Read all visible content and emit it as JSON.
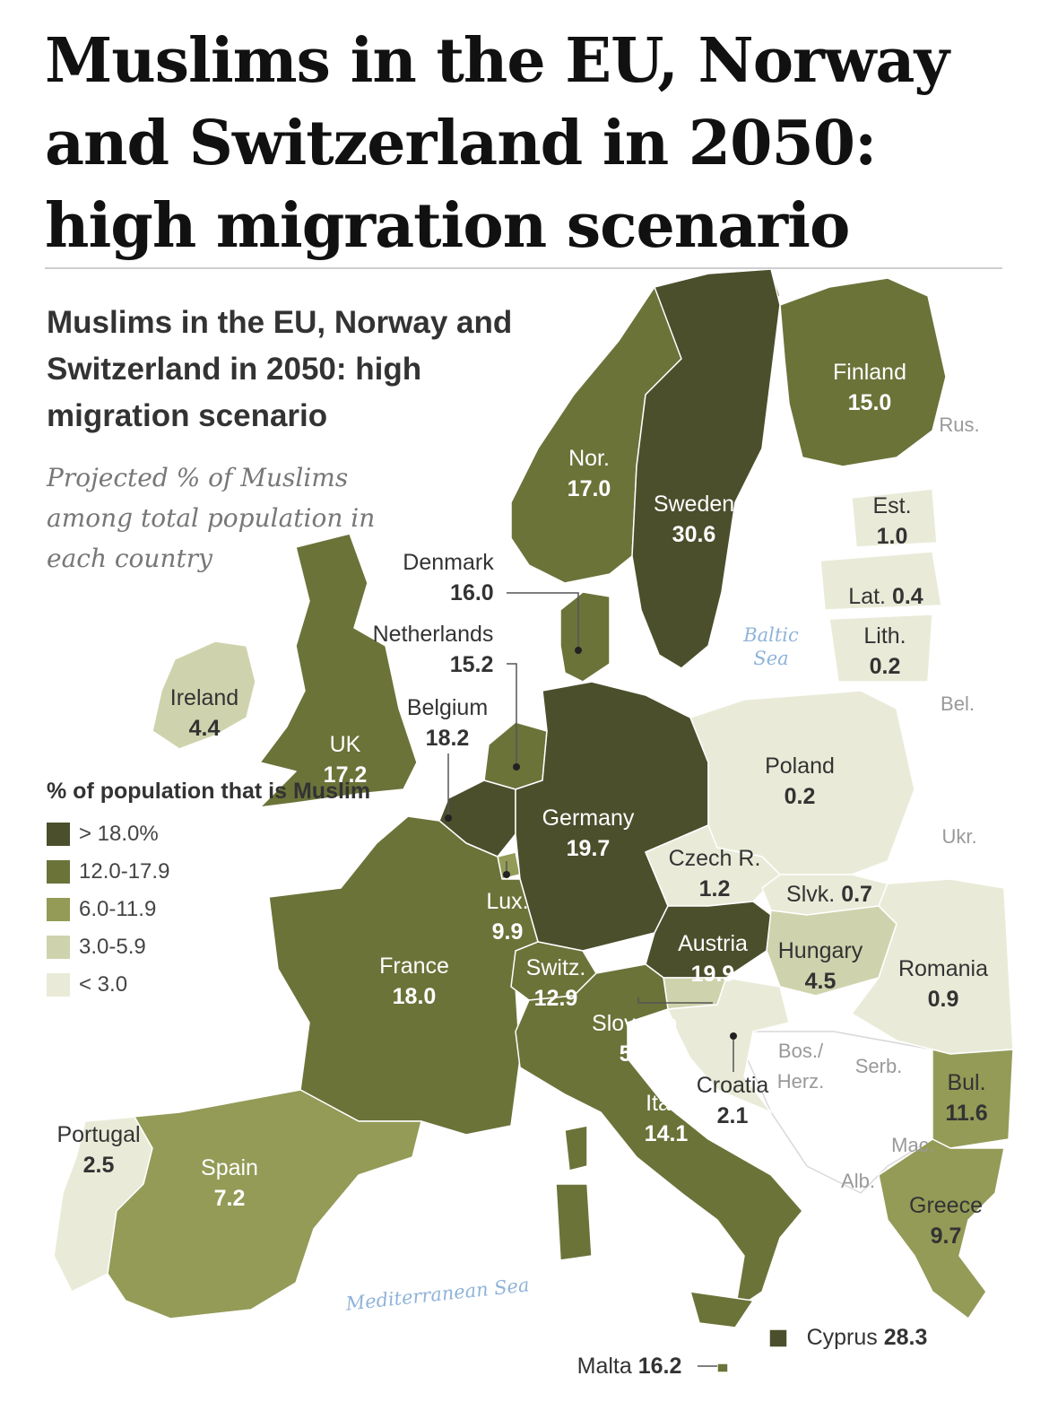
{
  "headline": "Muslims in the EU, Norway and Switzerland in 2050: high migration scenario",
  "map": {
    "title": "Muslims in the EU, Norway and Switzerland in 2050: high migration scenario",
    "subtitle": "Projected % of Muslims among total population in each country",
    "legend": {
      "title": "% of population that is Muslim",
      "items": [
        {
          "label": "> 18.0%",
          "color": "#4b4f2c"
        },
        {
          "label": "12.0-17.9",
          "color": "#6b7339"
        },
        {
          "label": "6.0-11.9",
          "color": "#939b57"
        },
        {
          "label": "3.0-5.9",
          "color": "#cfd3ad"
        },
        {
          "label": "< 3.0",
          "color": "#e9ebd8"
        }
      ]
    },
    "countries": {
      "finland": {
        "name": "Finland",
        "value": "15.0",
        "pct": 15.0
      },
      "norway": {
        "name": "Nor.",
        "value": "17.0",
        "pct": 17.0
      },
      "sweden": {
        "name": "Sweden",
        "value": "30.6",
        "pct": 30.6
      },
      "estonia": {
        "name": "Est.",
        "value": "1.0",
        "pct": 1.0
      },
      "latvia": {
        "name": "Lat.",
        "value": "0.4",
        "pct": 0.4
      },
      "lithuania": {
        "name": "Lith.",
        "value": "0.2",
        "pct": 0.2
      },
      "denmark": {
        "name": "Denmark",
        "value": "16.0",
        "pct": 16.0
      },
      "netherlands": {
        "name": "Netherlands",
        "value": "15.2",
        "pct": 15.2
      },
      "belgium": {
        "name": "Belgium",
        "value": "18.2",
        "pct": 18.2
      },
      "ireland": {
        "name": "Ireland",
        "value": "4.4",
        "pct": 4.4
      },
      "uk": {
        "name": "UK",
        "value": "17.2",
        "pct": 17.2
      },
      "germany": {
        "name": "Germany",
        "value": "19.7",
        "pct": 19.7
      },
      "poland": {
        "name": "Poland",
        "value": "0.2",
        "pct": 0.2
      },
      "czech": {
        "name": "Czech R.",
        "value": "1.2",
        "pct": 1.2
      },
      "slovakia": {
        "name": "Slvk.",
        "value": "0.7",
        "pct": 0.7
      },
      "luxembourg": {
        "name": "Lux.",
        "value": "9.9",
        "pct": 9.9
      },
      "austria": {
        "name": "Austria",
        "value": "19.9",
        "pct": 19.9
      },
      "hungary": {
        "name": "Hungary",
        "value": "4.5",
        "pct": 4.5
      },
      "romania": {
        "name": "Romania",
        "value": "0.9",
        "pct": 0.9
      },
      "france": {
        "name": "France",
        "value": "18.0",
        "pct": 18.0
      },
      "switzerland": {
        "name": "Switz.",
        "value": "12.9",
        "pct": 12.9
      },
      "slovenia": {
        "name": "Slovenia",
        "value": "5.2",
        "pct": 5.2
      },
      "croatia": {
        "name": "Croatia",
        "value": "2.1",
        "pct": 2.1
      },
      "italy": {
        "name": "Italy",
        "value": "14.1",
        "pct": 14.1
      },
      "bulgaria": {
        "name": "Bul.",
        "value": "11.6",
        "pct": 11.6
      },
      "greece": {
        "name": "Greece",
        "value": "9.7",
        "pct": 9.7
      },
      "portugal": {
        "name": "Portugal",
        "value": "2.5",
        "pct": 2.5
      },
      "spain": {
        "name": "Spain",
        "value": "7.2",
        "pct": 7.2
      },
      "malta": {
        "name": "Malta",
        "value": "16.2",
        "pct": 16.2
      },
      "cyprus": {
        "name": "Cyprus",
        "value": "28.3",
        "pct": 28.3
      }
    },
    "other_labels": {
      "rus": "Rus.",
      "bel": "Bel.",
      "ukr": "Ukr.",
      "serb": "Serb.",
      "bos": "Bos./ Herz.",
      "mac": "Mac.",
      "alb": "Alb."
    },
    "seas": {
      "baltic": "Baltic Sea",
      "mediterranean": "Mediterranean Sea"
    }
  }
}
